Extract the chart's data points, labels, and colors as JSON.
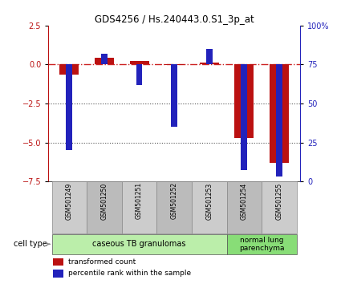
{
  "title": "GDS4256 / Hs.240443.0.S1_3p_at",
  "samples": [
    "GSM501249",
    "GSM501250",
    "GSM501251",
    "GSM501252",
    "GSM501253",
    "GSM501254",
    "GSM501255"
  ],
  "transformed_count": [
    -0.65,
    0.45,
    0.25,
    -0.05,
    0.15,
    -4.7,
    -6.3
  ],
  "percentile_rank": [
    20,
    82,
    62,
    35,
    85,
    7,
    3
  ],
  "ylim_left": [
    -7.5,
    2.5
  ],
  "ylim_right": [
    0,
    100
  ],
  "yticks_left": [
    2.5,
    0.0,
    -2.5,
    -5.0,
    -7.5
  ],
  "yticks_right": [
    100,
    75,
    50,
    25,
    0
  ],
  "ytick_labels_right": [
    "100%",
    "75",
    "50",
    "25",
    "0"
  ],
  "bar_color_red": "#bb1111",
  "bar_color_blue": "#2222bb",
  "hline_color": "#cc2222",
  "dotted_line_color": "#555555",
  "bg_color": "#ffffff",
  "plot_bg": "#ffffff",
  "cell_type_groups": [
    {
      "label": "caseous TB granulomas",
      "start": 0,
      "end": 5,
      "color": "#bbeeaa"
    },
    {
      "label": "normal lung\nparenchyma",
      "start": 5,
      "end": 7,
      "color": "#88dd77"
    }
  ],
  "legend_red_label": "transformed count",
  "legend_blue_label": "percentile rank within the sample",
  "cell_type_label": "cell type",
  "red_bar_width": 0.55,
  "blue_marker_size": 0.18,
  "x_positions": [
    0,
    1,
    2,
    3,
    4,
    5,
    6
  ],
  "n_samples": 7,
  "gray_label_bg": "#cccccc",
  "gray_label_bg2": "#bbbbbb"
}
